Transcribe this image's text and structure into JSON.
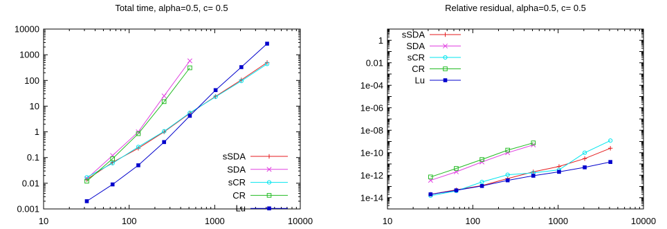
{
  "chart_data": [
    {
      "type": "line",
      "title": "Total time, alpha=0.5, c= 0.5",
      "xlabel": "",
      "ylabel": "",
      "xscale": "log",
      "yscale": "log",
      "xlim": [
        10,
        10000
      ],
      "ylim": [
        0.001,
        10000
      ],
      "xticks": [
        "10",
        "100",
        "1000",
        "10000"
      ],
      "yticks": [
        "0.001",
        "0.01",
        "0.1",
        "1",
        "10",
        "100",
        "1000",
        "10000"
      ],
      "grid": false,
      "legend_position": "bottom-right",
      "series": [
        {
          "name": "sSDA",
          "color": "#e41a1c",
          "marker": "plus",
          "x": [
            32,
            64,
            128,
            256,
            512,
            1024,
            2048,
            4096
          ],
          "y": [
            0.014,
            0.065,
            0.23,
            1.0,
            5.3,
            24,
            105,
            500
          ]
        },
        {
          "name": "SDA",
          "color": "#e040e0",
          "marker": "cross",
          "x": [
            32,
            64,
            128,
            256,
            512
          ],
          "y": [
            0.015,
            0.12,
            1.0,
            25,
            580
          ]
        },
        {
          "name": "sCR",
          "color": "#00e5ee",
          "marker": "circle",
          "x": [
            32,
            64,
            128,
            256,
            512,
            1024,
            2048,
            4096
          ],
          "y": [
            0.017,
            0.06,
            0.26,
            1.05,
            5.5,
            23,
            95,
            440
          ]
        },
        {
          "name": "CR",
          "color": "#22bb22",
          "marker": "square-open",
          "x": [
            32,
            64,
            128,
            256,
            512
          ],
          "y": [
            0.012,
            0.09,
            0.85,
            15,
            310
          ]
        },
        {
          "name": "Lu",
          "color": "#0000cc",
          "marker": "square-filled",
          "x": [
            32,
            64,
            128,
            256,
            512,
            1024,
            2048,
            4096
          ],
          "y": [
            0.002,
            0.009,
            0.05,
            0.4,
            4.2,
            42,
            330,
            2700
          ]
        }
      ]
    },
    {
      "type": "line",
      "title": "Relative residual, alpha=0.5, c= 0.5",
      "xlabel": "",
      "ylabel": "",
      "xscale": "log",
      "yscale": "log",
      "xlim": [
        10,
        10000
      ],
      "ylim": [
        1e-15,
        10
      ],
      "xticks": [
        "10",
        "100",
        "1000",
        "10000"
      ],
      "yticks": [
        "1e-14",
        "1e-12",
        "1e-10",
        "1e-08",
        "1e-06",
        "1e-04",
        "0.01",
        "1"
      ],
      "grid": false,
      "legend_position": "top-left",
      "series": [
        {
          "name": "sSDA",
          "color": "#e41a1c",
          "marker": "plus",
          "x": [
            32,
            64,
            128,
            256,
            512,
            1024,
            2048,
            4096
          ],
          "y": [
            2e-14,
            5e-14,
            1.2e-13,
            5e-13,
            2e-12,
            6e-12,
            3e-11,
            2.5e-10
          ]
        },
        {
          "name": "SDA",
          "color": "#e040e0",
          "marker": "cross",
          "x": [
            32,
            64,
            128,
            256,
            512
          ],
          "y": [
            3.5e-13,
            2e-12,
            1.5e-11,
            1e-10,
            5e-10
          ]
        },
        {
          "name": "sCR",
          "color": "#00e5ee",
          "marker": "circle",
          "x": [
            32,
            64,
            128,
            256,
            512,
            1024,
            2048,
            4096
          ],
          "y": [
            1.5e-14,
            4e-14,
            2.5e-13,
            1.1e-12,
            1.6e-12,
            3e-12,
            1e-10,
            1.2e-09
          ]
        },
        {
          "name": "CR",
          "color": "#22bb22",
          "marker": "square-open",
          "x": [
            32,
            64,
            128,
            256,
            512
          ],
          "y": [
            7e-13,
            4e-12,
            2.5e-11,
            1.7e-10,
            7.5e-10
          ]
        },
        {
          "name": "Lu",
          "color": "#0000cc",
          "marker": "square-filled",
          "x": [
            32,
            64,
            128,
            256,
            512,
            1024,
            2048,
            4096
          ],
          "y": [
            2e-14,
            4.5e-14,
            1.1e-13,
            3.5e-13,
            9e-13,
            2e-12,
            5e-12,
            1.5e-11
          ]
        }
      ]
    }
  ]
}
